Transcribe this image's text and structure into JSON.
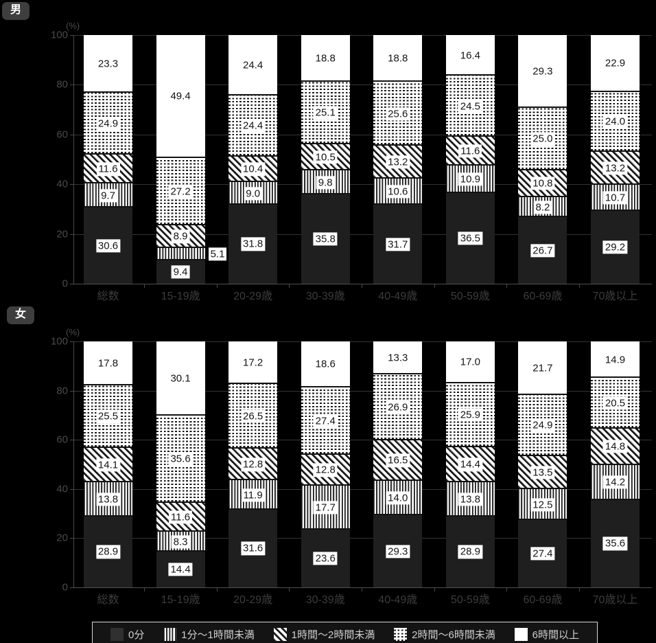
{
  "figure": {
    "unit_label": "(%)",
    "colors": {
      "background": "#000000",
      "bar_solid_dark": "#1f1f1f",
      "pattern_ink": "#161616",
      "pattern_paper": "#ffffff",
      "gridline": "#353535",
      "axis": "#4a4a4a",
      "value_label_bg": "#ffffff",
      "value_label_text": "#141414",
      "badge_bg": "#3e3e3e",
      "badge_text": "#ffffff",
      "legend_text": "#cfcfcf",
      "legend_border": "#d9d9d9"
    }
  },
  "legend": {
    "position": "bottom",
    "items": [
      "0分",
      "1分〜1時間未満",
      "1時間〜2時間未満",
      "2時間〜6時間未満",
      "6時間以上"
    ]
  },
  "chart_data": [
    {
      "type": "bar",
      "stacked": true,
      "percent": true,
      "group_badge": "男",
      "unit": "(%)",
      "ylim": [
        0,
        100
      ],
      "y_ticks": [
        0,
        20,
        40,
        60,
        80,
        100
      ],
      "grid": true,
      "categories": [
        "総数",
        "15-19歳",
        "20-29歳",
        "30-39歳",
        "40-49歳",
        "50-59歳",
        "60-69歳",
        "70歳以上"
      ],
      "series": [
        {
          "name": "0分",
          "pattern": "solid-dark",
          "values": [
            30.6,
            9.4,
            31.8,
            35.8,
            31.7,
            36.5,
            26.7,
            29.2
          ]
        },
        {
          "name": "1分〜1時間未満",
          "pattern": "vertical-stripes",
          "values": [
            9.7,
            5.1,
            9.0,
            9.8,
            10.6,
            10.9,
            8.2,
            10.7
          ]
        },
        {
          "name": "1時間〜2時間未満",
          "pattern": "diagonal-stripes",
          "values": [
            11.6,
            8.9,
            10.4,
            10.5,
            13.2,
            11.6,
            10.8,
            13.2
          ]
        },
        {
          "name": "2時間〜6時間未満",
          "pattern": "dots",
          "values": [
            24.9,
            27.2,
            24.4,
            25.1,
            25.6,
            24.5,
            25.0,
            24.0
          ]
        },
        {
          "name": "6時間以上",
          "pattern": "white",
          "values": [
            23.3,
            49.4,
            24.4,
            18.8,
            18.8,
            16.4,
            29.3,
            22.9
          ]
        }
      ]
    },
    {
      "type": "bar",
      "stacked": true,
      "percent": true,
      "group_badge": "女",
      "unit": "(%)",
      "ylim": [
        0,
        100
      ],
      "y_ticks": [
        0,
        20,
        40,
        60,
        80,
        100
      ],
      "grid": true,
      "categories": [
        "総数",
        "15-19歳",
        "20-29歳",
        "30-39歳",
        "40-49歳",
        "50-59歳",
        "60-69歳",
        "70歳以上"
      ],
      "series": [
        {
          "name": "0分",
          "pattern": "solid-dark",
          "values": [
            28.9,
            14.4,
            31.6,
            23.6,
            29.3,
            28.9,
            27.4,
            35.6
          ]
        },
        {
          "name": "1分〜1時間未満",
          "pattern": "vertical-stripes",
          "values": [
            13.8,
            8.3,
            11.9,
            17.7,
            14.0,
            13.8,
            12.5,
            14.2
          ]
        },
        {
          "name": "1時間〜2時間未満",
          "pattern": "diagonal-stripes",
          "values": [
            14.1,
            11.6,
            12.8,
            12.8,
            16.5,
            14.4,
            13.5,
            14.8
          ]
        },
        {
          "name": "2時間〜6時間未満",
          "pattern": "dots",
          "values": [
            25.5,
            35.6,
            26.5,
            27.4,
            26.9,
            25.9,
            24.9,
            20.5
          ]
        },
        {
          "name": "6時間以上",
          "pattern": "white",
          "values": [
            17.8,
            30.1,
            17.2,
            18.6,
            13.3,
            17.0,
            21.7,
            14.9
          ]
        }
      ]
    }
  ]
}
